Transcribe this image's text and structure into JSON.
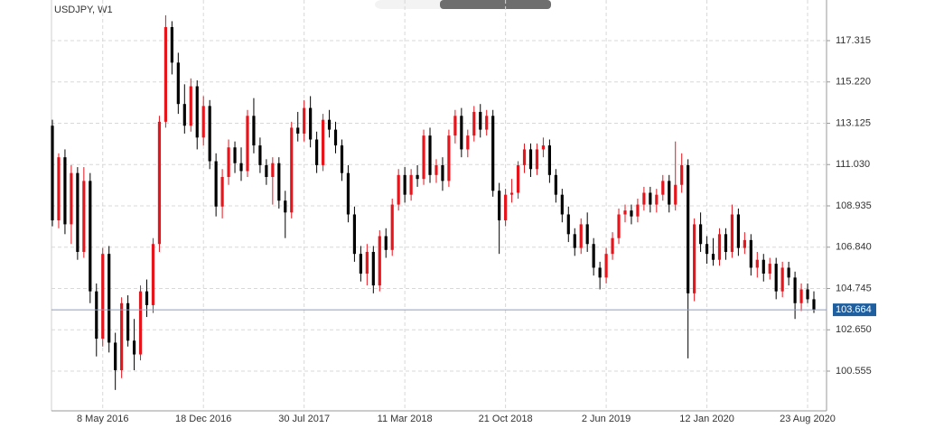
{
  "chart_data": {
    "type": "candlestick",
    "title": "USDJPY, W1",
    "categories": [
      null,
      null,
      null,
      null,
      null,
      null,
      null,
      null,
      "8 May 2016",
      null,
      null,
      null,
      null,
      null,
      null,
      null,
      null,
      null,
      null,
      null,
      null,
      null,
      null,
      null,
      "18 Dec 2016",
      null,
      null,
      null,
      null,
      null,
      null,
      null,
      null,
      null,
      null,
      null,
      null,
      null,
      null,
      null,
      "30 Jul 2017",
      null,
      null,
      null,
      null,
      null,
      null,
      null,
      null,
      null,
      null,
      null,
      null,
      null,
      null,
      null,
      "11 Mar 2018",
      null,
      null,
      null,
      null,
      null,
      null,
      null,
      null,
      null,
      null,
      null,
      null,
      null,
      null,
      null,
      "21 Oct 2018",
      null,
      null,
      null,
      null,
      null,
      null,
      null,
      null,
      null,
      null,
      null,
      null,
      null,
      null,
      null,
      "2 Jun 2019",
      null,
      null,
      null,
      null,
      null,
      null,
      null,
      null,
      null,
      null,
      null,
      null,
      null,
      null,
      null,
      "12 Jan 2020",
      null,
      null,
      null,
      null,
      null,
      null,
      null,
      null,
      null,
      null,
      null,
      null,
      null,
      null,
      null,
      "23 Aug 2020",
      null
    ],
    "ohlc": [
      [
        113.0,
        113.3,
        107.9,
        108.2
      ],
      [
        108.2,
        111.6,
        107.8,
        111.4
      ],
      [
        111.4,
        111.8,
        107.5,
        108.0
      ],
      [
        108.0,
        111.0,
        107.0,
        110.6
      ],
      [
        110.6,
        110.9,
        106.2,
        106.6
      ],
      [
        106.6,
        110.9,
        106.3,
        110.2
      ],
      [
        110.2,
        110.6,
        104.0,
        104.6
      ],
      [
        104.6,
        105.0,
        101.3,
        102.2
      ],
      [
        102.2,
        106.8,
        101.8,
        106.5
      ],
      [
        106.5,
        106.9,
        101.5,
        102.0
      ],
      [
        102.0,
        102.5,
        99.6,
        100.6
      ],
      [
        100.6,
        104.3,
        100.2,
        104.0
      ],
      [
        104.0,
        104.4,
        101.8,
        102.1
      ],
      [
        102.1,
        103.2,
        100.6,
        101.4
      ],
      [
        101.4,
        104.9,
        101.1,
        104.6
      ],
      [
        104.6,
        105.2,
        103.3,
        103.9
      ],
      [
        103.9,
        107.3,
        103.5,
        107.0
      ],
      [
        107.0,
        113.5,
        106.6,
        113.2
      ],
      [
        113.2,
        118.6,
        112.9,
        118.0
      ],
      [
        118.0,
        118.3,
        115.6,
        116.2
      ],
      [
        116.2,
        116.7,
        113.6,
        114.1
      ],
      [
        114.1,
        115.1,
        112.6,
        113.0
      ],
      [
        113.0,
        115.4,
        112.7,
        115.0
      ],
      [
        115.0,
        115.3,
        111.8,
        112.4
      ],
      [
        112.4,
        114.5,
        112.0,
        114.0
      ],
      [
        114.0,
        114.3,
        110.8,
        111.2
      ],
      [
        111.2,
        111.6,
        108.4,
        108.9
      ],
      [
        108.9,
        110.8,
        108.3,
        110.4
      ],
      [
        110.4,
        112.3,
        110.0,
        111.9
      ],
      [
        111.9,
        112.2,
        110.6,
        111.1
      ],
      [
        111.1,
        111.9,
        110.2,
        110.7
      ],
      [
        110.7,
        113.8,
        110.4,
        113.5
      ],
      [
        113.5,
        114.4,
        111.6,
        112.0
      ],
      [
        112.0,
        112.4,
        110.6,
        111.0
      ],
      [
        111.0,
        111.3,
        110.0,
        110.4
      ],
      [
        110.4,
        111.4,
        109.0,
        111.1
      ],
      [
        111.1,
        111.4,
        108.8,
        109.2
      ],
      [
        109.2,
        109.7,
        107.3,
        108.6
      ],
      [
        108.6,
        113.2,
        108.3,
        112.9
      ],
      [
        112.9,
        113.7,
        112.2,
        112.6
      ],
      [
        112.6,
        114.3,
        112.2,
        113.9
      ],
      [
        113.9,
        114.5,
        111.9,
        112.3
      ],
      [
        112.3,
        112.7,
        110.6,
        111.0
      ],
      [
        111.0,
        113.6,
        110.7,
        113.3
      ],
      [
        113.3,
        113.8,
        112.4,
        112.8
      ],
      [
        112.8,
        113.2,
        111.6,
        112.0
      ],
      [
        112.0,
        112.3,
        110.2,
        110.6
      ],
      [
        110.6,
        111.0,
        108.1,
        108.5
      ],
      [
        108.5,
        108.9,
        106.1,
        106.5
      ],
      [
        106.5,
        106.9,
        105.1,
        105.5
      ],
      [
        105.5,
        107.0,
        104.9,
        106.6
      ],
      [
        106.6,
        106.9,
        104.5,
        104.9
      ],
      [
        104.9,
        107.7,
        104.6,
        107.4
      ],
      [
        107.4,
        107.8,
        106.3,
        106.7
      ],
      [
        106.7,
        109.3,
        106.4,
        109.0
      ],
      [
        109.0,
        110.8,
        108.7,
        110.5
      ],
      [
        110.5,
        110.9,
        109.1,
        109.5
      ],
      [
        109.5,
        110.8,
        109.2,
        110.5
      ],
      [
        110.5,
        111.0,
        109.9,
        110.3
      ],
      [
        110.3,
        112.8,
        110.0,
        112.5
      ],
      [
        112.5,
        112.9,
        110.1,
        110.5
      ],
      [
        110.5,
        111.3,
        110.1,
        111.0
      ],
      [
        111.0,
        111.4,
        109.7,
        110.2
      ],
      [
        110.2,
        112.8,
        109.9,
        112.5
      ],
      [
        112.5,
        113.8,
        112.1,
        113.5
      ],
      [
        113.5,
        113.9,
        111.4,
        111.8
      ],
      [
        111.8,
        112.8,
        111.4,
        112.5
      ],
      [
        112.5,
        114.0,
        112.2,
        113.7
      ],
      [
        113.7,
        114.1,
        112.4,
        112.8
      ],
      [
        112.8,
        113.8,
        112.5,
        113.5
      ],
      [
        113.5,
        113.8,
        109.4,
        109.7
      ],
      [
        109.7,
        110.1,
        106.5,
        108.2
      ],
      [
        108.2,
        109.8,
        107.9,
        109.5
      ],
      [
        109.5,
        110.3,
        109.1,
        109.6
      ],
      [
        109.6,
        111.2,
        109.3,
        111.0
      ],
      [
        111.0,
        112.1,
        110.6,
        111.8
      ],
      [
        111.8,
        112.1,
        110.4,
        110.8
      ],
      [
        110.8,
        112.1,
        110.5,
        111.8
      ],
      [
        111.8,
        112.4,
        111.4,
        112.0
      ],
      [
        112.0,
        112.3,
        110.1,
        110.5
      ],
      [
        110.5,
        110.8,
        109.1,
        109.5
      ],
      [
        109.5,
        109.8,
        108.1,
        108.5
      ],
      [
        108.5,
        108.9,
        107.1,
        107.5
      ],
      [
        107.5,
        107.8,
        106.4,
        106.8
      ],
      [
        106.8,
        108.3,
        106.5,
        108.0
      ],
      [
        108.0,
        108.6,
        106.6,
        107.0
      ],
      [
        107.0,
        107.3,
        105.4,
        105.8
      ],
      [
        105.8,
        106.1,
        104.7,
        105.3
      ],
      [
        105.3,
        106.8,
        105.0,
        106.5
      ],
      [
        106.5,
        107.6,
        106.2,
        107.3
      ],
      [
        107.3,
        108.8,
        107.0,
        108.5
      ],
      [
        108.5,
        109.0,
        108.1,
        108.7
      ],
      [
        108.7,
        109.0,
        108.0,
        108.4
      ],
      [
        108.4,
        109.3,
        108.1,
        109.0
      ],
      [
        109.0,
        109.9,
        108.7,
        109.6
      ],
      [
        109.6,
        109.9,
        108.6,
        109.0
      ],
      [
        109.0,
        109.8,
        108.6,
        109.5
      ],
      [
        109.5,
        110.5,
        109.2,
        110.2
      ],
      [
        110.2,
        110.5,
        108.6,
        109.0
      ],
      [
        109.0,
        112.2,
        108.7,
        110.0
      ],
      [
        110.0,
        111.6,
        109.6,
        111.0
      ],
      [
        111.0,
        111.3,
        101.2,
        104.5
      ],
      [
        104.5,
        108.3,
        104.1,
        108.0
      ],
      [
        108.0,
        108.6,
        106.6,
        107.0
      ],
      [
        107.0,
        107.4,
        106.0,
        106.5
      ],
      [
        106.5,
        107.3,
        105.9,
        106.2
      ],
      [
        106.2,
        107.8,
        105.9,
        107.5
      ],
      [
        107.5,
        107.8,
        106.2,
        106.6
      ],
      [
        106.6,
        109.0,
        106.3,
        108.5
      ],
      [
        108.5,
        108.8,
        106.4,
        106.8
      ],
      [
        106.8,
        107.6,
        106.5,
        107.2
      ],
      [
        107.2,
        107.5,
        105.4,
        105.8
      ],
      [
        105.8,
        106.6,
        105.3,
        106.2
      ],
      [
        106.2,
        106.5,
        105.1,
        105.5
      ],
      [
        105.5,
        106.3,
        105.2,
        106.0
      ],
      [
        106.0,
        106.3,
        104.2,
        104.6
      ],
      [
        104.6,
        106.1,
        104.3,
        105.8
      ],
      [
        105.8,
        106.1,
        104.9,
        105.3
      ],
      [
        105.3,
        105.6,
        103.2,
        104.0
      ],
      [
        104.0,
        105.0,
        103.6,
        104.7
      ],
      [
        104.7,
        105.0,
        104.0,
        104.2
      ],
      [
        104.2,
        104.6,
        103.5,
        103.664
      ]
    ],
    "up_color": "#e8141c",
    "down_color": "#000000",
    "ylim": [
      98.54,
      119.375
    ],
    "yticks": [
      100.555,
      {
        "value": 102.65,
        "label": "102.650"
      },
      104.745,
      {
        "value": 106.84,
        "label": "106.840"
      },
      108.935,
      {
        "value": 111.03,
        "label": "111.030"
      },
      113.125,
      {
        "value": 115.22,
        "label": "115.220"
      },
      117.315
    ],
    "current_price": 103.664,
    "current_price_color": "#1f5fa0",
    "grid": true
  }
}
